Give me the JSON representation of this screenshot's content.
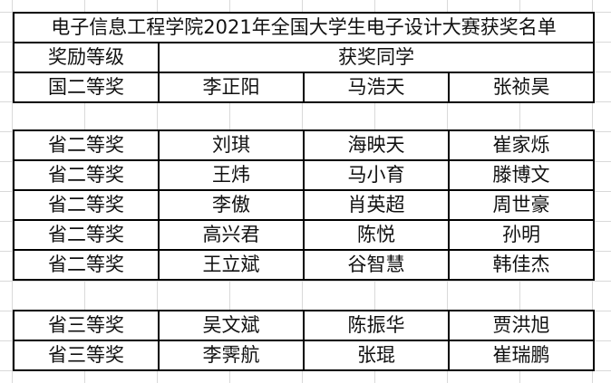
{
  "title": "电子信息工程学院2021年全国大学生电子设计大赛获奖名单",
  "header": {
    "level": "奖励等级",
    "students": "获奖同学"
  },
  "groups": [
    {
      "rows": [
        {
          "level": "国二等奖",
          "names": [
            "李正阳",
            "马浩天",
            "张祯昊"
          ]
        }
      ]
    },
    {
      "rows": [
        {
          "level": "省二等奖",
          "names": [
            "刘琪",
            "海映天",
            "崔家烁"
          ]
        },
        {
          "level": "省二等奖",
          "names": [
            "王炜",
            "马小育",
            "滕博文"
          ]
        },
        {
          "level": "省二等奖",
          "names": [
            "李傲",
            "肖英超",
            "周世豪"
          ]
        },
        {
          "level": "省二等奖",
          "names": [
            "高兴君",
            "陈悦",
            "孙明"
          ]
        },
        {
          "level": "省二等奖",
          "names": [
            "王立斌",
            "谷智慧",
            "韩佳杰"
          ]
        }
      ]
    },
    {
      "rows": [
        {
          "level": "省三等奖",
          "names": [
            "吴文斌",
            "陈振华",
            "贾洪旭"
          ]
        },
        {
          "level": "省三等奖",
          "names": [
            "李霁航",
            "张琨",
            "崔瑞鹏"
          ]
        }
      ]
    }
  ]
}
